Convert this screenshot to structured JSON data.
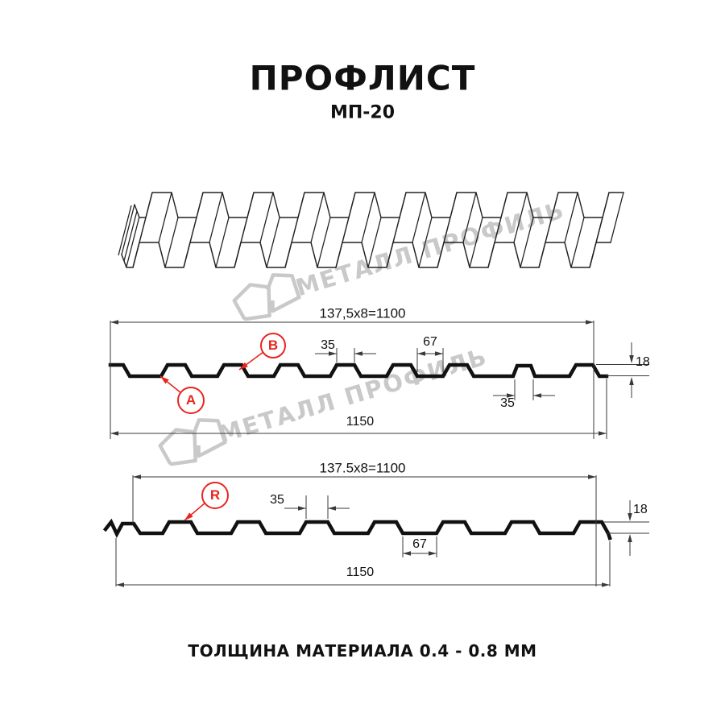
{
  "header": {
    "title": "ПРОФЛИСТ",
    "subtitle": "МП-20"
  },
  "watermark": {
    "text": "МЕТАЛЛ ПРОФИЛЬ"
  },
  "diagram1": {
    "cover_width_label": "137,5x8=1100",
    "rib_top_width_label": "35",
    "groove_width_label": "35",
    "valley_width_label": "67",
    "height_label": "18",
    "full_width_label": "1150",
    "callout_a": "A",
    "callout_b": "B"
  },
  "diagram2": {
    "cover_width_label": "137.5x8=1100",
    "rib_top_width_label": "35",
    "valley_width_label": "67",
    "height_label": "18",
    "full_width_label": "1150",
    "callout_r": "R"
  },
  "footer": {
    "thickness_note": "ТОЛЩИНА МАТЕРИАЛА 0.4 - 0.8 ММ"
  },
  "colors": {
    "accent_red": "#e8251f",
    "line_black": "#111111",
    "watermark_gray": "#c9c9c9"
  }
}
